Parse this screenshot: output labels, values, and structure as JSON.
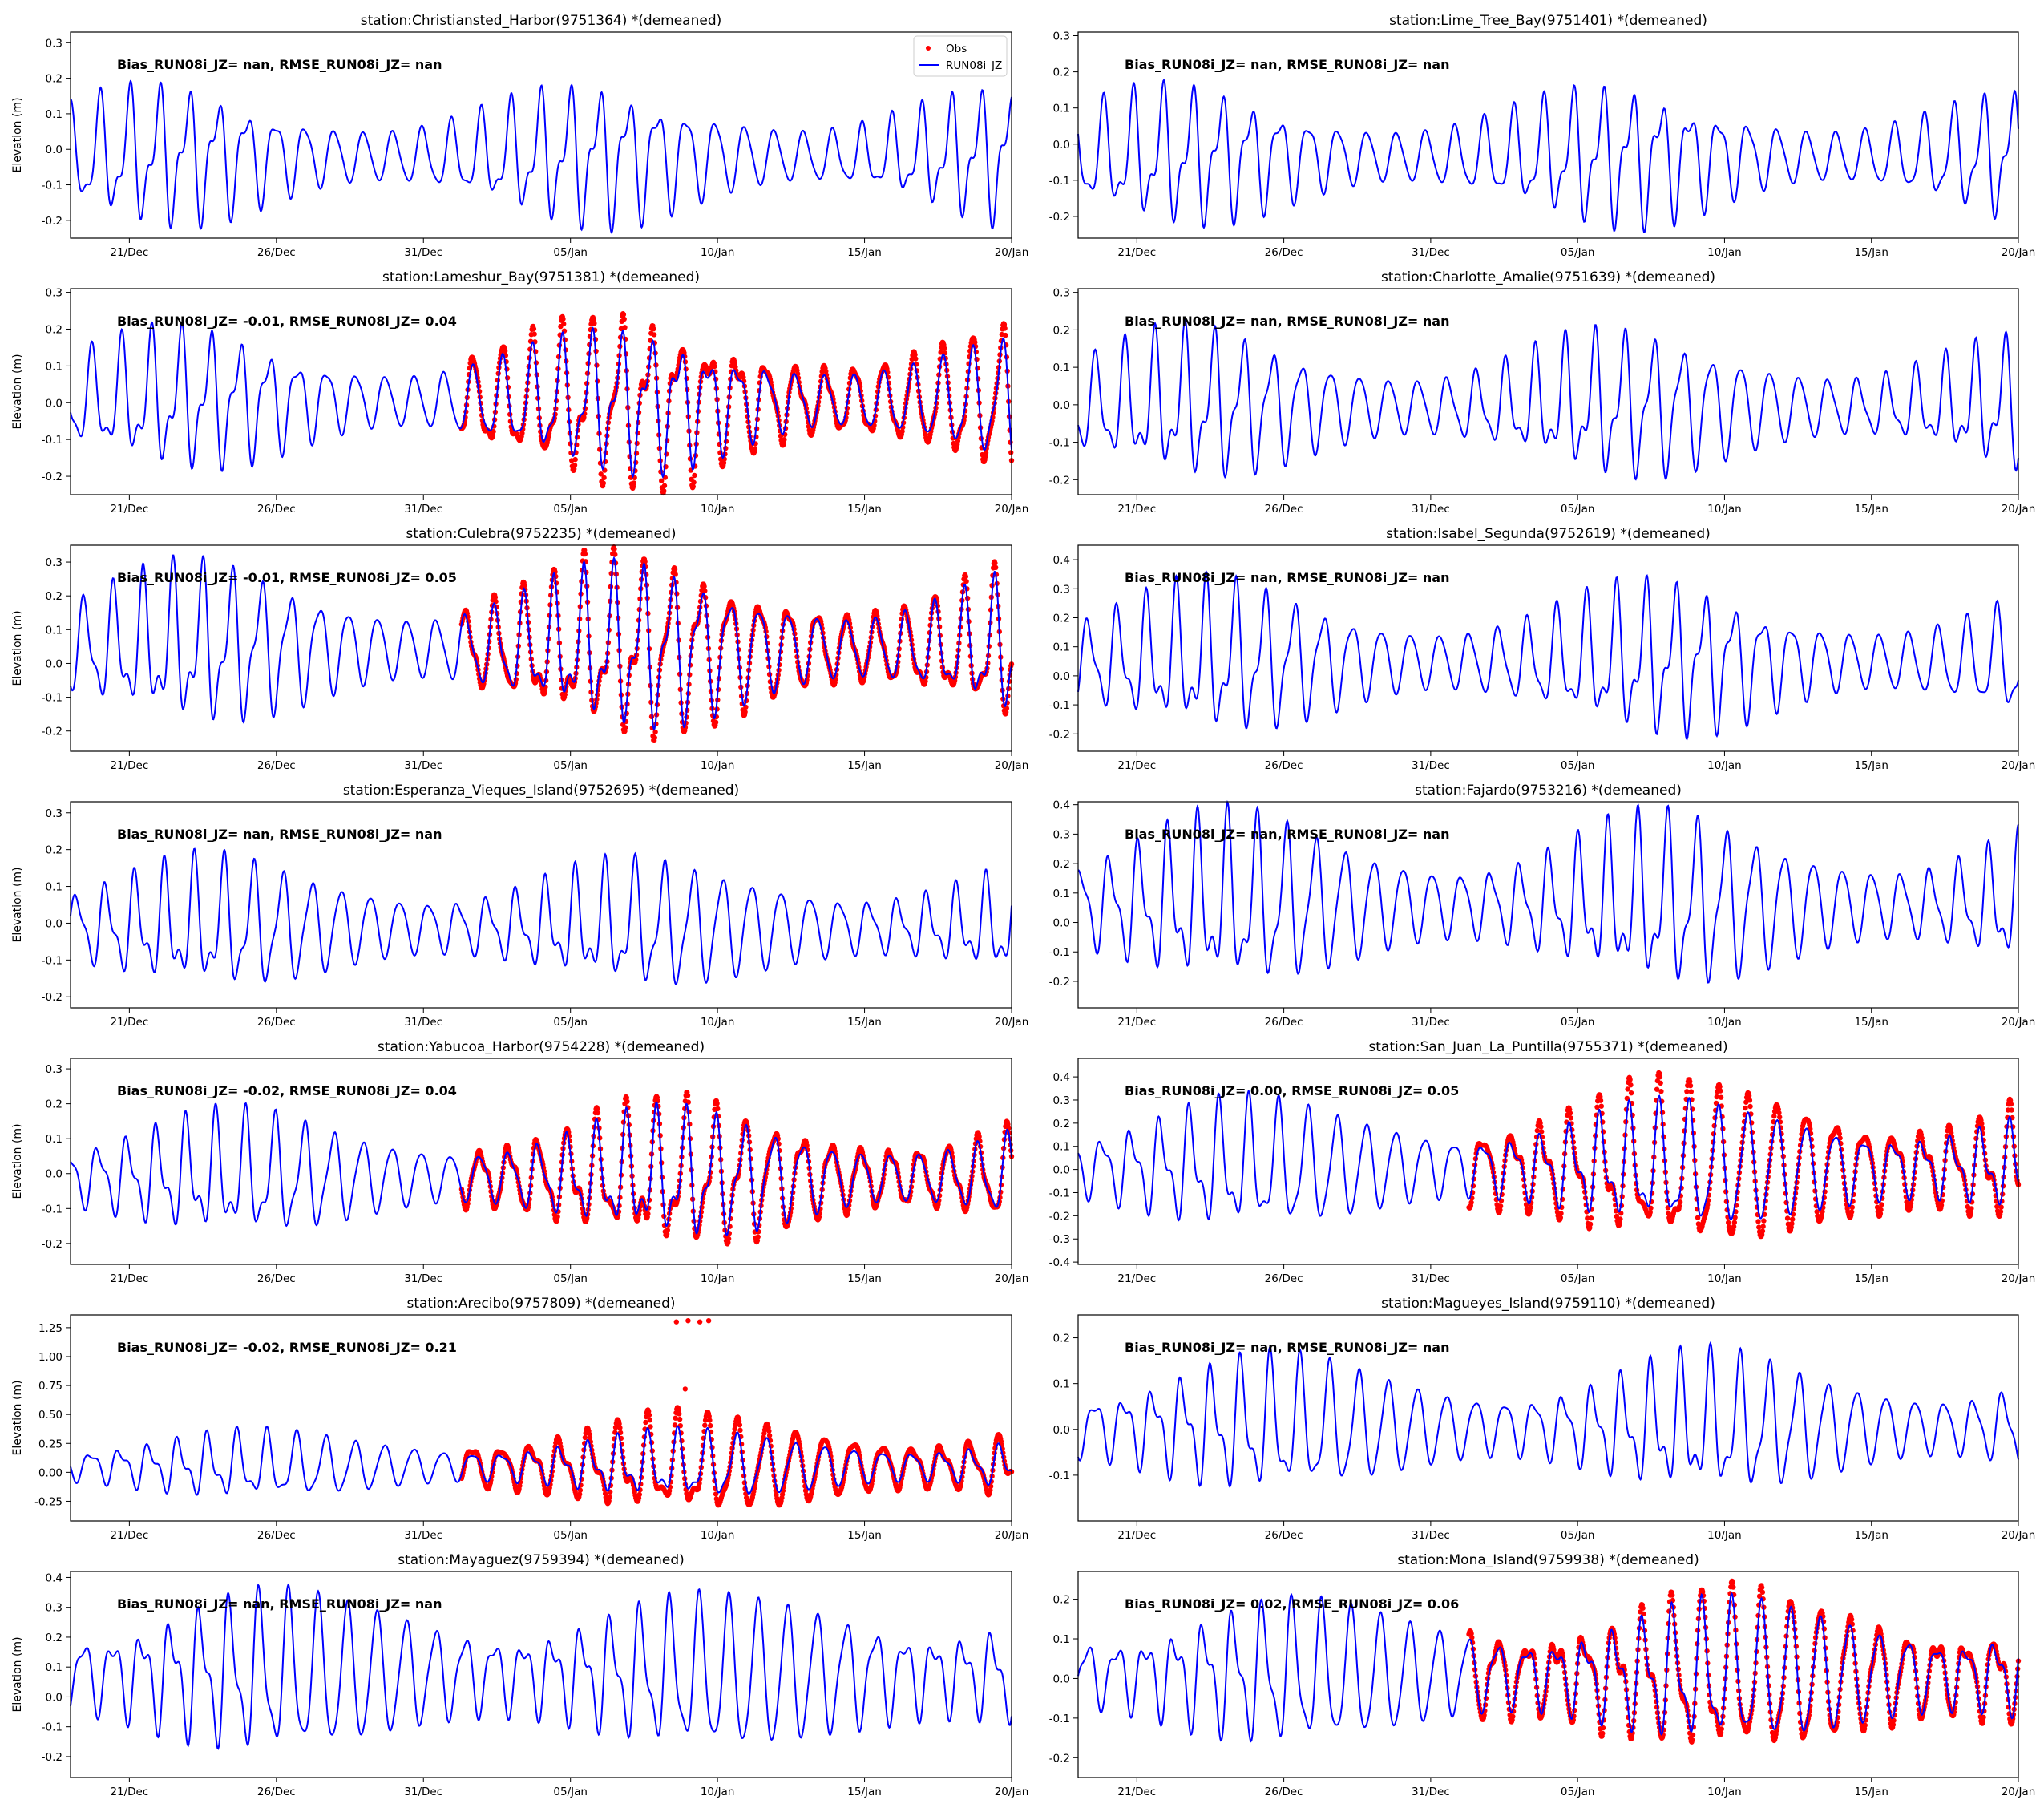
{
  "figure": {
    "ylabel": "Elevation (m)",
    "legend": {
      "placement": "top-right",
      "entries": [
        "Obs",
        "RUN08i_JZ"
      ]
    },
    "colors": {
      "model": "#0000ff",
      "obs": "#ff0000"
    }
  },
  "chart_data": [
    {
      "type": "line",
      "title": "station:Christiansted_Harbor(9751364) *(demeaned)",
      "stats": "Bias_RUN08i_JZ=   nan, RMSE_RUN08i_JZ=   nan",
      "ylabel": "Elevation (m)",
      "x_range": [
        "2019-12-19",
        "2020-01-20"
      ],
      "xticks": [
        "21/Dec",
        "26/Dec",
        "31/Dec",
        "05/Jan",
        "10/Jan",
        "15/Jan",
        "20/Jan"
      ],
      "ylim": [
        -0.25,
        0.33
      ],
      "yticks": [
        -0.2,
        -0.1,
        0.0,
        0.1,
        0.2,
        0.3
      ],
      "has_obs": false,
      "series": [
        {
          "name": "RUN08i_JZ",
          "approx_range": [
            -0.22,
            0.18
          ]
        }
      ],
      "legend": true
    },
    {
      "type": "line",
      "title": "station:Lime_Tree_Bay(9751401) *(demeaned)",
      "stats": "Bias_RUN08i_JZ=   nan, RMSE_RUN08i_JZ=   nan",
      "ylabel": "",
      "x_range": [
        "2019-12-19",
        "2020-01-20"
      ],
      "xticks": [
        "21/Dec",
        "26/Dec",
        "31/Dec",
        "05/Jan",
        "10/Jan",
        "15/Jan",
        "20/Jan"
      ],
      "ylim": [
        -0.26,
        0.31
      ],
      "yticks": [
        -0.2,
        -0.1,
        0.0,
        0.1,
        0.2,
        0.3
      ],
      "has_obs": false,
      "series": [
        {
          "name": "RUN08i_JZ",
          "approx_range": [
            -0.23,
            0.16
          ]
        }
      ]
    },
    {
      "type": "line",
      "title": "station:Lameshur_Bay(9751381) *(demeaned)",
      "stats": "Bias_RUN08i_JZ= -0.01, RMSE_RUN08i_JZ=  0.04",
      "ylabel": "Elevation (m)",
      "x_range": [
        "2019-12-19",
        "2020-01-20"
      ],
      "xticks": [
        "21/Dec",
        "26/Dec",
        "31/Dec",
        "05/Jan",
        "10/Jan",
        "15/Jan",
        "20/Jan"
      ],
      "ylim": [
        -0.25,
        0.31
      ],
      "yticks": [
        -0.2,
        -0.1,
        0.0,
        0.1,
        0.2,
        0.3
      ],
      "has_obs": true,
      "series": [
        {
          "name": "Obs",
          "approx_range": [
            -0.21,
            0.26
          ]
        },
        {
          "name": "RUN08i_JZ",
          "approx_range": [
            -0.19,
            0.2
          ]
        }
      ]
    },
    {
      "type": "line",
      "title": "station:Charlotte_Amalie(9751639) *(demeaned)",
      "stats": "Bias_RUN08i_JZ=   nan, RMSE_RUN08i_JZ=   nan",
      "ylabel": "",
      "x_range": [
        "2019-12-19",
        "2020-01-20"
      ],
      "xticks": [
        "21/Dec",
        "26/Dec",
        "31/Dec",
        "05/Jan",
        "10/Jan",
        "15/Jan",
        "20/Jan"
      ],
      "ylim": [
        -0.24,
        0.31
      ],
      "yticks": [
        -0.2,
        -0.1,
        0.0,
        0.1,
        0.2,
        0.3
      ],
      "has_obs": false,
      "series": [
        {
          "name": "RUN08i_JZ",
          "approx_range": [
            -0.21,
            0.2
          ]
        }
      ]
    },
    {
      "type": "line",
      "title": "station:Culebra(9752235) *(demeaned)",
      "stats": "Bias_RUN08i_JZ= -0.01, RMSE_RUN08i_JZ=  0.05",
      "ylabel": "Elevation (m)",
      "x_range": [
        "2019-12-19",
        "2020-01-20"
      ],
      "xticks": [
        "21/Dec",
        "26/Dec",
        "31/Dec",
        "05/Jan",
        "10/Jan",
        "15/Jan",
        "20/Jan"
      ],
      "ylim": [
        -0.26,
        0.35
      ],
      "yticks": [
        -0.2,
        -0.1,
        0.0,
        0.1,
        0.2,
        0.3
      ],
      "has_obs": true,
      "series": [
        {
          "name": "Obs",
          "approx_range": [
            -0.24,
            0.3
          ]
        },
        {
          "name": "RUN08i_JZ",
          "approx_range": [
            -0.2,
            0.29
          ]
        }
      ]
    },
    {
      "type": "line",
      "title": "station:Isabel_Segunda(9752619) *(demeaned)",
      "stats": "Bias_RUN08i_JZ=   nan, RMSE_RUN08i_JZ=   nan",
      "ylabel": "",
      "x_range": [
        "2019-12-19",
        "2020-01-20"
      ],
      "xticks": [
        "21/Dec",
        "26/Dec",
        "31/Dec",
        "05/Jan",
        "10/Jan",
        "15/Jan",
        "20/Jan"
      ],
      "ylim": [
        -0.26,
        0.45
      ],
      "yticks": [
        -0.2,
        -0.1,
        0.0,
        0.1,
        0.2,
        0.3,
        0.4
      ],
      "has_obs": false,
      "series": [
        {
          "name": "RUN08i_JZ",
          "approx_range": [
            -0.22,
            0.32
          ]
        }
      ]
    },
    {
      "type": "line",
      "title": "station:Esperanza_Vieques_Island(9752695) *(demeaned)",
      "stats": "Bias_RUN08i_JZ=   nan, RMSE_RUN08i_JZ=   nan",
      "ylabel": "Elevation (m)",
      "x_range": [
        "2019-12-19",
        "2020-01-20"
      ],
      "xticks": [
        "21/Dec",
        "26/Dec",
        "31/Dec",
        "05/Jan",
        "10/Jan",
        "15/Jan",
        "20/Jan"
      ],
      "ylim": [
        -0.23,
        0.33
      ],
      "yticks": [
        -0.2,
        -0.1,
        0.0,
        0.1,
        0.2,
        0.3
      ],
      "has_obs": false,
      "series": [
        {
          "name": "RUN08i_JZ",
          "approx_range": [
            -0.2,
            0.18
          ]
        }
      ]
    },
    {
      "type": "line",
      "title": "station:Fajardo(9753216) *(demeaned)",
      "stats": "Bias_RUN08i_JZ=   nan, RMSE_RUN08i_JZ=   nan",
      "ylabel": "",
      "x_range": [
        "2019-12-19",
        "2020-01-20"
      ],
      "xticks": [
        "21/Dec",
        "26/Dec",
        "31/Dec",
        "05/Jan",
        "10/Jan",
        "15/Jan",
        "20/Jan"
      ],
      "ylim": [
        -0.29,
        0.41
      ],
      "yticks": [
        -0.2,
        -0.1,
        0.0,
        0.1,
        0.2,
        0.3,
        0.4
      ],
      "has_obs": false,
      "series": [
        {
          "name": "RUN08i_JZ",
          "approx_range": [
            -0.25,
            0.37
          ]
        }
      ]
    },
    {
      "type": "line",
      "title": "station:Yabucoa_Harbor(9754228) *(demeaned)",
      "stats": "Bias_RUN08i_JZ= -0.02, RMSE_RUN08i_JZ=  0.04",
      "ylabel": "Elevation (m)",
      "x_range": [
        "2019-12-19",
        "2020-01-20"
      ],
      "xticks": [
        "21/Dec",
        "26/Dec",
        "31/Dec",
        "05/Jan",
        "10/Jan",
        "15/Jan",
        "20/Jan"
      ],
      "ylim": [
        -0.26,
        0.33
      ],
      "yticks": [
        -0.2,
        -0.1,
        0.0,
        0.1,
        0.2,
        0.3
      ],
      "has_obs": true,
      "series": [
        {
          "name": "Obs",
          "approx_range": [
            -0.23,
            0.2
          ]
        },
        {
          "name": "RUN08i_JZ",
          "approx_range": [
            -0.2,
            0.18
          ]
        }
      ]
    },
    {
      "type": "line",
      "title": "station:San_Juan_La_Puntilla(9755371) *(demeaned)",
      "stats": "Bias_RUN08i_JZ=  0.00, RMSE_RUN08i_JZ=  0.05",
      "ylabel": "",
      "x_range": [
        "2019-12-19",
        "2020-01-20"
      ],
      "xticks": [
        "21/Dec",
        "26/Dec",
        "31/Dec",
        "05/Jan",
        "10/Jan",
        "15/Jan",
        "20/Jan"
      ],
      "ylim": [
        -0.41,
        0.48
      ],
      "yticks": [
        -0.4,
        -0.3,
        -0.2,
        -0.1,
        0.0,
        0.1,
        0.2,
        0.3,
        0.4
      ],
      "has_obs": true,
      "series": [
        {
          "name": "Obs",
          "approx_range": [
            -0.37,
            0.44
          ]
        },
        {
          "name": "RUN08i_JZ",
          "approx_range": [
            -0.3,
            0.32
          ]
        }
      ]
    },
    {
      "type": "line",
      "title": "station:Arecibo(9757809) *(demeaned)",
      "stats": "Bias_RUN08i_JZ= -0.02, RMSE_RUN08i_JZ=  0.21",
      "ylabel": "Elevation (m)",
      "x_range": [
        "2019-12-19",
        "2020-01-20"
      ],
      "xticks": [
        "21/Dec",
        "26/Dec",
        "31/Dec",
        "05/Jan",
        "10/Jan",
        "15/Jan",
        "20/Jan"
      ],
      "ylim": [
        -0.42,
        1.36
      ],
      "yticks": [
        -0.25,
        0.0,
        0.25,
        0.5,
        0.75,
        1.0,
        1.25
      ],
      "has_obs": true,
      "series": [
        {
          "name": "Obs",
          "approx_range": [
            -0.38,
            1.31
          ]
        },
        {
          "name": "RUN08i_JZ",
          "approx_range": [
            -0.27,
            0.38
          ]
        }
      ]
    },
    {
      "type": "line",
      "title": "station:Magueyes_Island(9759110) *(demeaned)",
      "stats": "Bias_RUN08i_JZ=   nan, RMSE_RUN08i_JZ=   nan",
      "ylabel": "",
      "x_range": [
        "2019-12-19",
        "2020-01-20"
      ],
      "xticks": [
        "21/Dec",
        "26/Dec",
        "31/Dec",
        "05/Jan",
        "10/Jan",
        "15/Jan",
        "20/Jan"
      ],
      "ylim": [
        -0.2,
        0.25
      ],
      "yticks": [
        -0.1,
        0.0,
        0.1,
        0.2
      ],
      "has_obs": false,
      "series": [
        {
          "name": "RUN08i_JZ",
          "approx_range": [
            -0.16,
            0.17
          ]
        }
      ]
    },
    {
      "type": "line",
      "title": "station:Mayaguez(9759394) *(demeaned)",
      "stats": "Bias_RUN08i_JZ=   nan, RMSE_RUN08i_JZ=   nan",
      "ylabel": "Elevation (m)",
      "x_range": [
        "2019-12-19",
        "2020-01-20"
      ],
      "xticks": [
        "21/Dec",
        "26/Dec",
        "31/Dec",
        "05/Jan",
        "10/Jan",
        "15/Jan",
        "20/Jan"
      ],
      "ylim": [
        -0.27,
        0.42
      ],
      "yticks": [
        -0.2,
        -0.1,
        0.0,
        0.1,
        0.2,
        0.3,
        0.4
      ],
      "has_obs": false,
      "series": [
        {
          "name": "RUN08i_JZ",
          "approx_range": [
            -0.24,
            0.39
          ]
        }
      ]
    },
    {
      "type": "line",
      "title": "station:Mona_Island(9759938) *(demeaned)",
      "stats": "Bias_RUN08i_JZ=  0.02, RMSE_RUN08i_JZ=  0.06",
      "ylabel": "",
      "x_range": [
        "2019-12-19",
        "2020-01-20"
      ],
      "xticks": [
        "21/Dec",
        "26/Dec",
        "31/Dec",
        "05/Jan",
        "10/Jan",
        "15/Jan",
        "20/Jan"
      ],
      "ylim": [
        -0.25,
        0.27
      ],
      "yticks": [
        -0.2,
        -0.1,
        0.0,
        0.1,
        0.2
      ],
      "has_obs": true,
      "series": [
        {
          "name": "Obs",
          "approx_range": [
            -0.24,
            0.23
          ]
        },
        {
          "name": "RUN08i_JZ",
          "approx_range": [
            -0.2,
            0.22
          ]
        }
      ]
    }
  ]
}
